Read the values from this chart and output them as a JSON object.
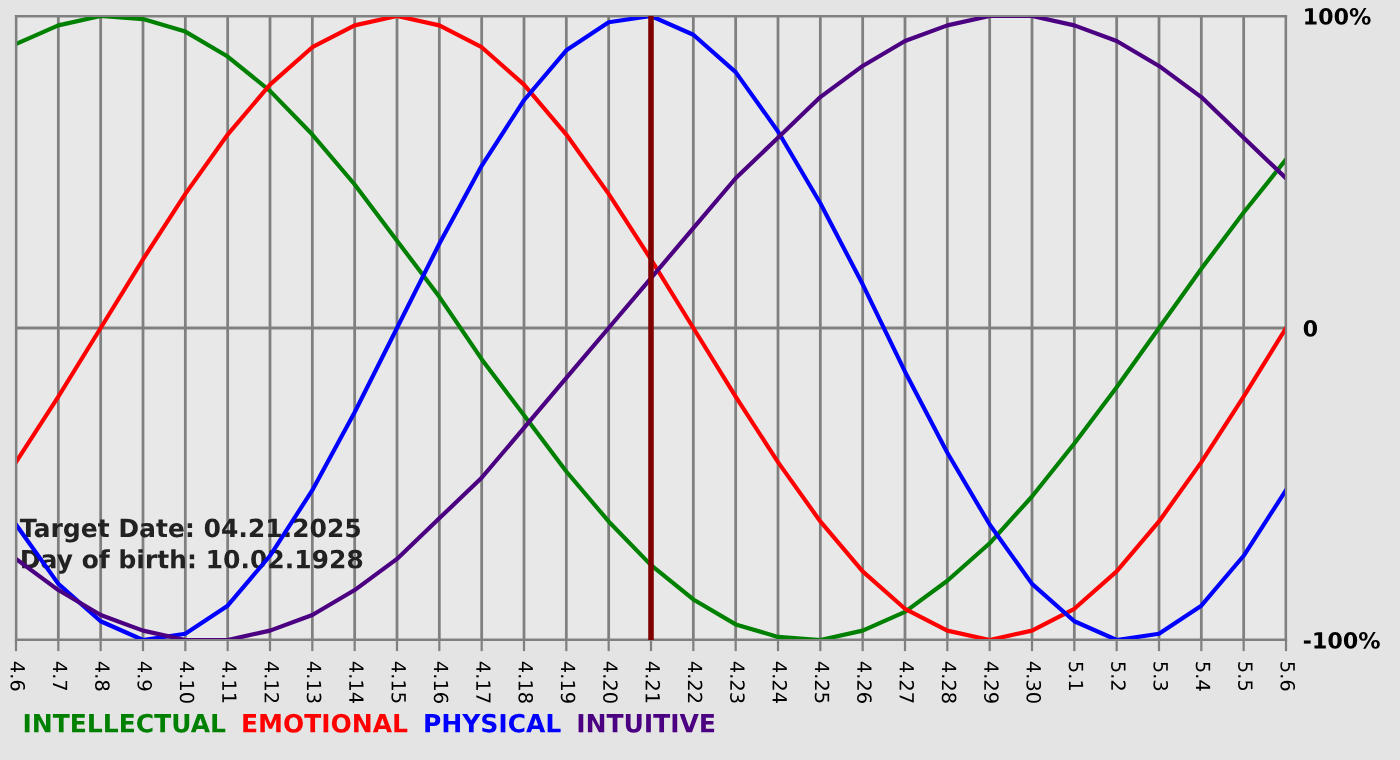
{
  "chart_data": {
    "type": "line",
    "categories": [
      "4.6",
      "4.7",
      "4.8",
      "4.9",
      "4.10",
      "4.11",
      "4.12",
      "4.13",
      "4.14",
      "4.15",
      "4.16",
      "4.17",
      "4.18",
      "4.19",
      "4.20",
      "4.21",
      "4.22",
      "4.23",
      "4.24",
      "4.25",
      "4.26",
      "4.27",
      "4.28",
      "4.29",
      "4.30",
      "5.1",
      "5.2",
      "5.3",
      "5.4",
      "5.5",
      "5.6"
    ],
    "series": [
      {
        "name": "INTELLECTUAL",
        "color": "#008000",
        "values": [
          91,
          97,
          100,
          99,
          95,
          87,
          76,
          62,
          46,
          28,
          10,
          -10,
          -28,
          -46,
          -62,
          -76,
          -87,
          -95,
          -99,
          -100,
          -97,
          -91,
          -81,
          -69,
          -54,
          -37,
          -19,
          0,
          19,
          37,
          54
        ]
      },
      {
        "name": "EMOTIONAL",
        "color": "#ff0000",
        "values": [
          -43,
          -22,
          0,
          22,
          43,
          62,
          78,
          90,
          97,
          100,
          97,
          90,
          78,
          62,
          43,
          22,
          0,
          -22,
          -43,
          -62,
          -78,
          -90,
          -97,
          -100,
          -97,
          -90,
          -78,
          -62,
          -43,
          -22,
          0
        ]
      },
      {
        "name": "PHYSICAL",
        "color": "#0000ff",
        "values": [
          -63,
          -82,
          -94,
          -100,
          -98,
          -89,
          -73,
          -52,
          -27,
          0,
          27,
          52,
          73,
          89,
          98,
          100,
          94,
          82,
          63,
          40,
          14,
          -14,
          -40,
          -63,
          -82,
          -94,
          -100,
          -98,
          -89,
          -73,
          -52
        ]
      },
      {
        "name": "INTUITIVE",
        "color": "#4b0082",
        "values": [
          -74,
          -84,
          -92,
          -97,
          -100,
          -100,
          -97,
          -92,
          -84,
          -74,
          -61,
          -48,
          -32,
          -16,
          0,
          16,
          32,
          48,
          61,
          74,
          84,
          92,
          97,
          100,
          100,
          97,
          92,
          84,
          74,
          61,
          48
        ]
      }
    ],
    "ylim": [
      -100,
      100
    ],
    "yticks": [
      {
        "value": -100,
        "label": "-100%"
      },
      0,
      {
        "value": 100,
        "label": "100%"
      }
    ],
    "grid": true,
    "legend": "bottom",
    "ref_lines": [
      {
        "axis": "x",
        "value": "4.21",
        "color": "#800000"
      }
    ],
    "annotations": [
      "Target Date: 04.21.2025",
      "Day of birth: 10.02.1928"
    ]
  }
}
